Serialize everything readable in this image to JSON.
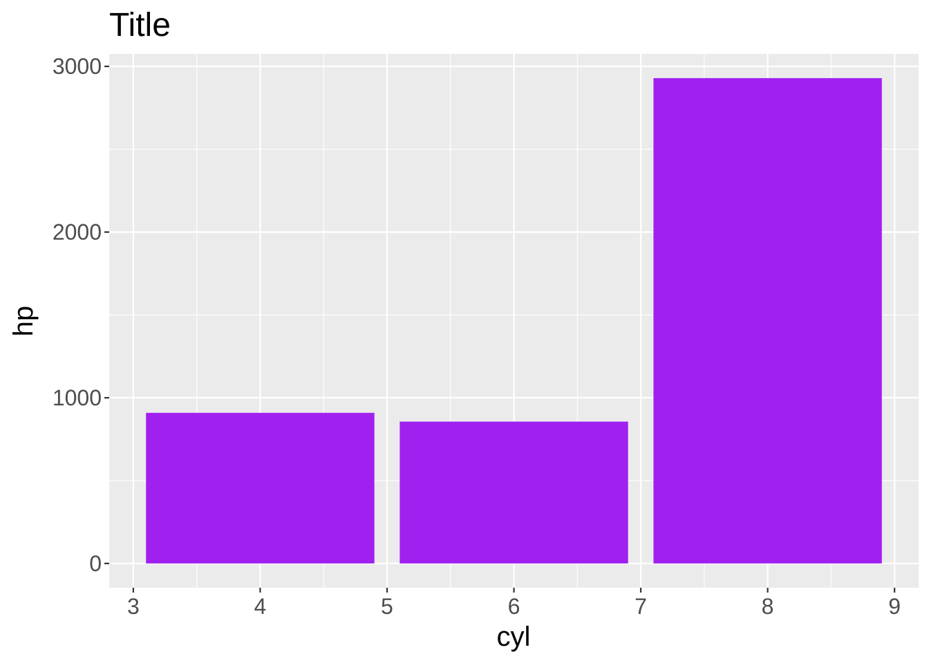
{
  "chart_data": {
    "type": "bar",
    "title": "Title",
    "xlabel": "cyl",
    "ylabel": "hp",
    "x": [
      4,
      6,
      8
    ],
    "values": [
      909,
      856,
      2929
    ],
    "bar_width": 1.8,
    "xlim": [
      2.81,
      9.19
    ],
    "ylim": [
      -146.45,
      3075.45
    ],
    "xticks": [
      3,
      4,
      5,
      6,
      7,
      8,
      9
    ],
    "yticks": [
      0,
      1000,
      2000,
      3000
    ],
    "grid": true,
    "legend": "none",
    "colors": {
      "bar": "#a020f0",
      "panel": "#ebebeb",
      "grid": "#ffffff",
      "tick_text": "#4d4d4d",
      "tick_mark": "#333333"
    }
  }
}
